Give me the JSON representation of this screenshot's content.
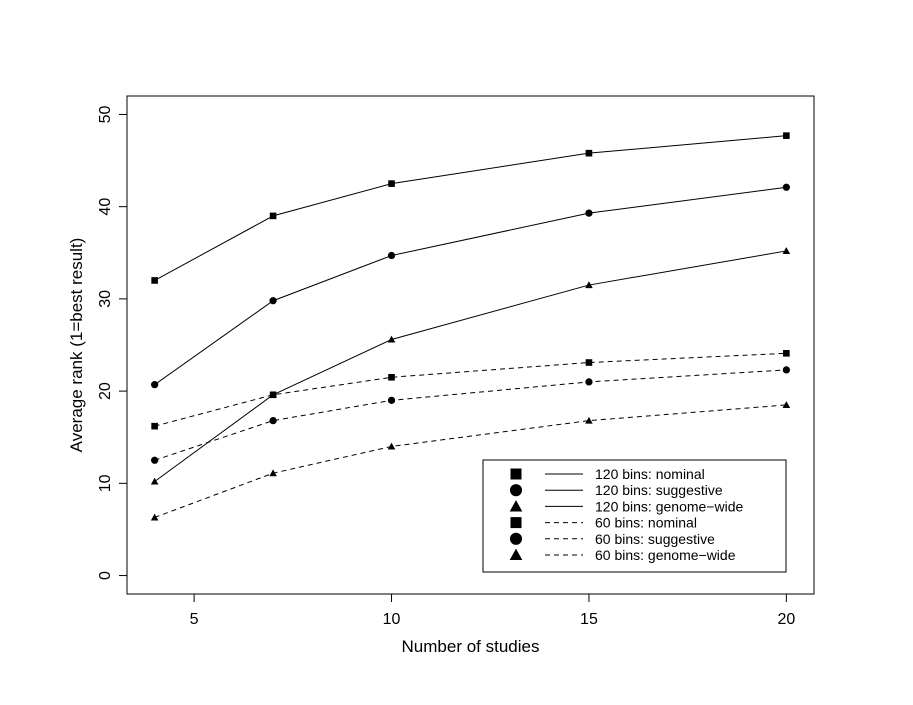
{
  "chart_data": {
    "type": "line",
    "title": "",
    "xlabel": "Number of studies",
    "ylabel": "Average rank (1=best result)",
    "xlim": [
      3.3,
      20.7
    ],
    "ylim": [
      -2,
      52
    ],
    "xticks": [
      "5",
      "10",
      "15",
      "20"
    ],
    "xtick_values": [
      5,
      10,
      15,
      20
    ],
    "yticks": [
      "0",
      "10",
      "20",
      "30",
      "40",
      "50"
    ],
    "ytick_values": [
      0,
      10,
      20,
      30,
      40,
      50
    ],
    "ytick_rotation": "vertical",
    "grid": false,
    "legend_position": "bottom-right",
    "x": [
      4,
      7,
      10,
      15,
      20
    ],
    "series": [
      {
        "name": "120 bins: nominal",
        "marker": "square",
        "line": "solid",
        "values": [
          32.0,
          39.0,
          42.5,
          45.8,
          47.7
        ]
      },
      {
        "name": "120 bins: suggestive",
        "marker": "circle",
        "line": "solid",
        "values": [
          20.7,
          29.8,
          34.7,
          39.3,
          42.1
        ]
      },
      {
        "name": "120 bins: genome−wide",
        "marker": "triangle",
        "line": "solid",
        "values": [
          10.2,
          19.6,
          25.6,
          31.5,
          35.2
        ]
      },
      {
        "name": "60 bins: nominal",
        "marker": "square",
        "line": "dashed",
        "values": [
          16.2,
          19.6,
          21.5,
          23.1,
          24.1
        ]
      },
      {
        "name": "60 bins: suggestive",
        "marker": "circle",
        "line": "dashed",
        "values": [
          12.5,
          16.8,
          19.0,
          21.0,
          22.3
        ]
      },
      {
        "name": "60 bins: genome−wide",
        "marker": "triangle",
        "line": "dashed",
        "values": [
          6.3,
          11.1,
          14.0,
          16.8,
          18.5
        ]
      }
    ]
  }
}
